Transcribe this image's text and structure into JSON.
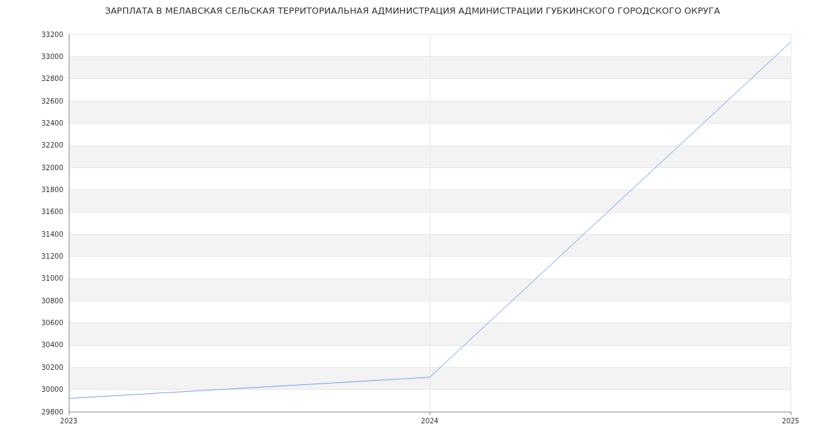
{
  "chart_data": {
    "type": "line",
    "title": "ЗАРПЛАТА В МЕЛАВСКАЯ СЕЛЬСКАЯ ТЕРРИТОРИАЛЬНАЯ АДМИНИСТРАЦИЯ АДМИНИСТРАЦИИ ГУБКИНСКОГО ГОРОДСКОГО ОКРУГА",
    "x": [
      2023,
      2024,
      2025
    ],
    "series": [
      {
        "color": "#6d9eeb",
        "values": [
          29920,
          30110,
          33130
        ]
      }
    ],
    "xlim": [
      2023,
      2025
    ],
    "xticks": [
      2023,
      2024,
      2025
    ],
    "ylim": [
      29800,
      33200
    ],
    "yticks": [
      29800,
      30000,
      30200,
      30400,
      30600,
      30800,
      31000,
      31200,
      31400,
      31600,
      31800,
      32000,
      32200,
      32400,
      32600,
      32800,
      33000,
      33200
    ],
    "grid": true,
    "marker": "none",
    "line_style": "solid"
  }
}
